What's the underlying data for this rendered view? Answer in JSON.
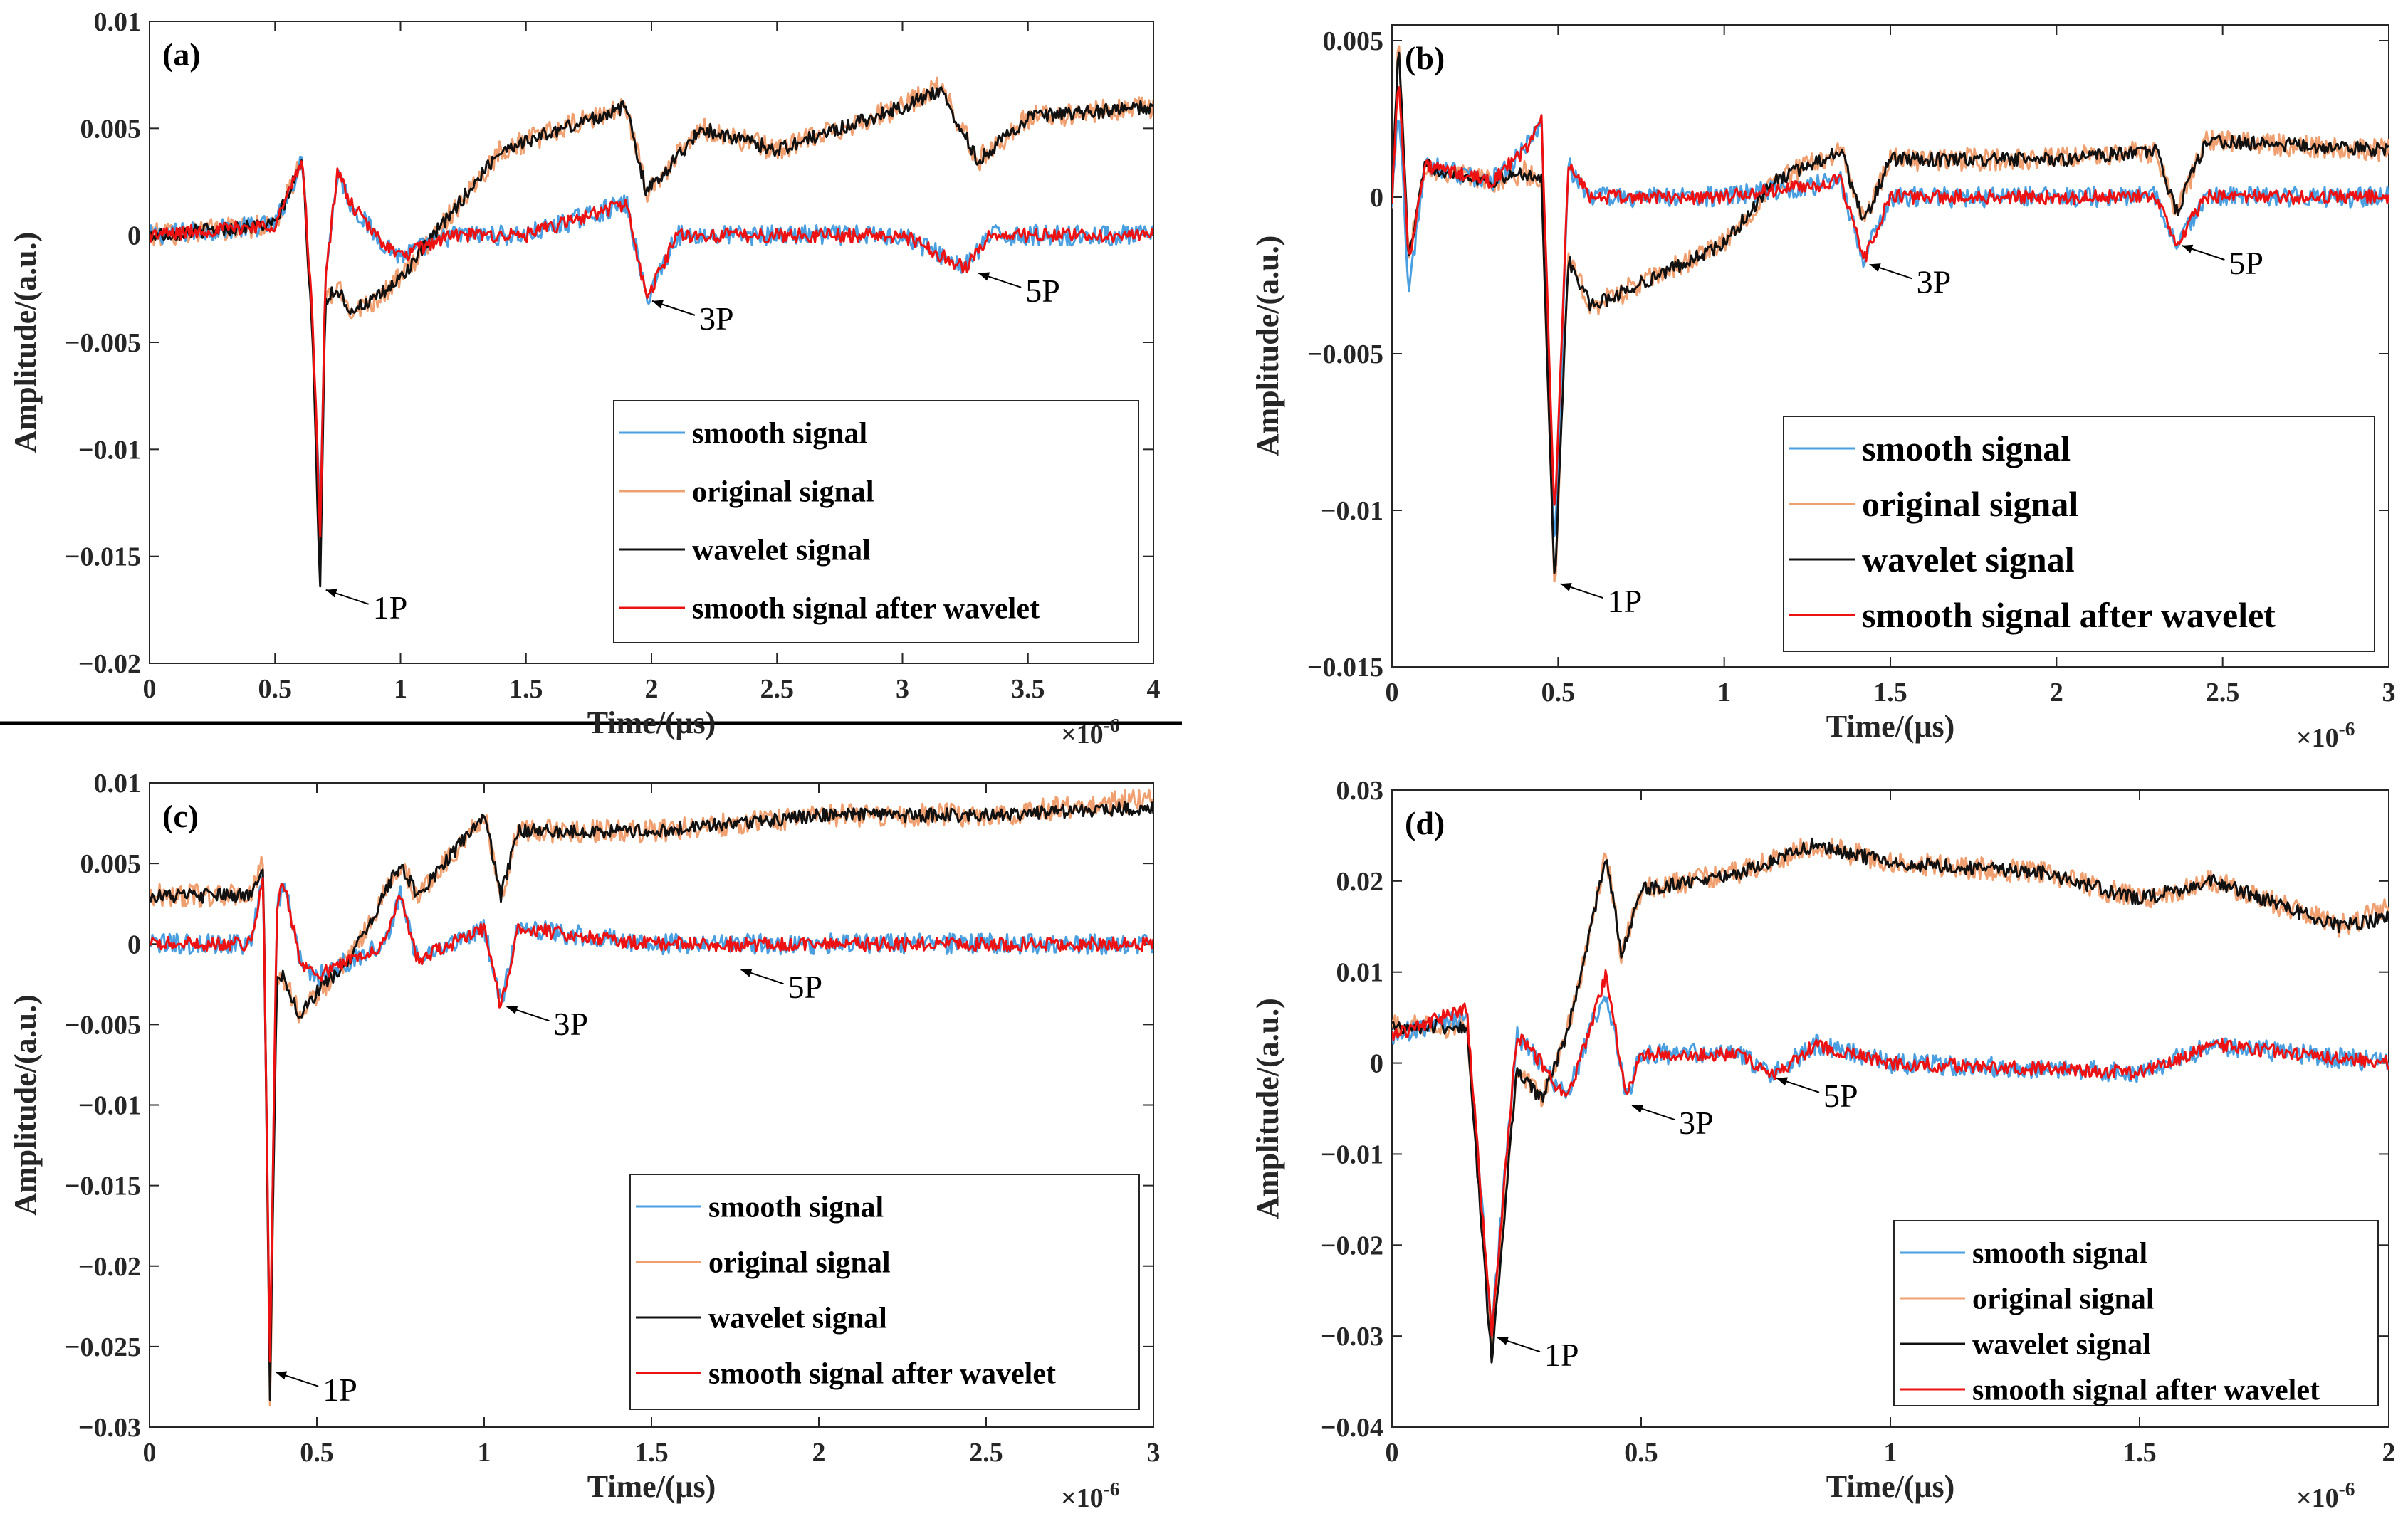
{
  "series_names": [
    "smooth signal",
    "original signal",
    "wavelet signal",
    "smooth signal after wavelet"
  ],
  "colors": {
    "smooth": "#4a9fe0",
    "original": "#f0a070",
    "wavelet": "#111111",
    "after": "#ee1111",
    "axis": "#262626",
    "separator": "#000000"
  },
  "chart_data": [
    {
      "panel": "(a)",
      "type": "line",
      "xlabel": "Time/(μs)",
      "ylabel": "Amplitude/(a.u.)",
      "x_exponent": "×10",
      "x_exponent_power": "-6",
      "xlim": [
        0,
        4e-06
      ],
      "ylim": [
        -0.02,
        0.01
      ],
      "xticks": [
        0,
        5e-07,
        1e-06,
        1.5e-06,
        2e-06,
        2.5e-06,
        3e-06,
        3.5e-06,
        4e-06
      ],
      "xtick_labels": [
        "0",
        "0.5",
        "1",
        "1.5",
        "2",
        "2.5",
        "3",
        "3.5",
        "4"
      ],
      "yticks": [
        0.01,
        0.005,
        0,
        -0.005,
        -0.01,
        -0.015,
        -0.02
      ],
      "ytick_labels": [
        "0.01",
        "0.005",
        "0",
        "−0.005",
        "−0.01",
        "−0.015",
        "−0.02"
      ],
      "legend_labels": [
        "smooth signal",
        "original signal",
        "wavelet  signal",
        "smooth signal after wavelet"
      ],
      "legend_position": "lower-right",
      "annotations": [
        {
          "text": "1P",
          "x": 6.8e-07,
          "y": -0.0165
        },
        {
          "text": "3P",
          "x": 1.98e-06,
          "y": -0.003
        },
        {
          "text": "5P",
          "x": 3.28e-06,
          "y": -0.0017
        }
      ],
      "series": [
        {
          "name": "smooth signal",
          "x": [
            0,
            5e-07,
            6.1e-07,
            6.5e-07,
            6.8e-07,
            7e-07,
            7.5e-07,
            8e-07,
            9e-07,
            1e-06,
            1.2e-06,
            1.5e-06,
            1.9e-06,
            1.98e-06,
            2.1e-06,
            2.5e-06,
            3e-06,
            3.25e-06,
            3.35e-06,
            3.6e-06,
            4e-06
          ],
          "y": [
            0,
            0.0005,
            0.0035,
            -0.004,
            -0.0135,
            -0.002,
            0.003,
            0.0015,
            0,
            -0.001,
            0,
            0,
            0.0015,
            -0.003,
            0,
            0,
            0,
            -0.0015,
            0,
            0,
            0
          ]
        },
        {
          "name": "original signal",
          "x": [
            0,
            5e-07,
            6.1e-07,
            6.5e-07,
            6.8e-07,
            7e-07,
            7.5e-07,
            8e-07,
            9e-07,
            1e-06,
            1.4e-06,
            1.9e-06,
            1.98e-06,
            2.2e-06,
            2.5e-06,
            3e-06,
            3.15e-06,
            3.3e-06,
            3.5e-06,
            4e-06
          ],
          "y": [
            0,
            0.0005,
            0.0035,
            -0.005,
            -0.016,
            -0.003,
            -0.0025,
            -0.0035,
            -0.003,
            -0.002,
            0.004,
            0.006,
            0.002,
            0.005,
            0.004,
            0.006,
            0.007,
            0.0035,
            0.0055,
            0.006
          ]
        },
        {
          "name": "wavelet signal",
          "x": [
            0,
            5e-07,
            6.1e-07,
            6.5e-07,
            6.8e-07,
            7e-07,
            7.5e-07,
            8e-07,
            9e-07,
            1e-06,
            1.4e-06,
            1.9e-06,
            1.98e-06,
            2.2e-06,
            2.5e-06,
            3e-06,
            3.15e-06,
            3.3e-06,
            3.5e-06,
            4e-06
          ],
          "y": [
            0,
            0.0005,
            0.0035,
            -0.005,
            -0.0165,
            -0.003,
            -0.0025,
            -0.0035,
            -0.003,
            -0.002,
            0.004,
            0.006,
            0.002,
            0.005,
            0.004,
            0.006,
            0.0068,
            0.0035,
            0.0055,
            0.006
          ]
        },
        {
          "name": "smooth signal after wavelet",
          "x": [
            0,
            5e-07,
            6.1e-07,
            6.5e-07,
            6.8e-07,
            7e-07,
            7.5e-07,
            8e-07,
            9e-07,
            1e-06,
            1.2e-06,
            1.5e-06,
            1.9e-06,
            1.98e-06,
            2.1e-06,
            2.5e-06,
            3e-06,
            3.25e-06,
            3.35e-06,
            3.6e-06,
            4e-06
          ],
          "y": [
            0,
            0.0005,
            0.0035,
            -0.004,
            -0.014,
            -0.002,
            0.003,
            0.0015,
            0,
            -0.001,
            0,
            0,
            0.0015,
            -0.003,
            0,
            0,
            0,
            -0.0015,
            0,
            0,
            0
          ]
        }
      ]
    },
    {
      "panel": "(b)",
      "type": "line",
      "xlabel": "Time/(μs)",
      "ylabel": "Amplitude/(a.u.)",
      "x_exponent": "×10",
      "x_exponent_power": "-6",
      "xlim": [
        0,
        3e-06
      ],
      "ylim": [
        -0.015,
        0.0055
      ],
      "xticks": [
        0,
        5e-07,
        1e-06,
        1.5e-06,
        2e-06,
        2.5e-06,
        3e-06
      ],
      "xtick_labels": [
        "0",
        "0.5",
        "1",
        "1.5",
        "2",
        "2.5",
        "3"
      ],
      "yticks": [
        0.005,
        0,
        -0.005,
        -0.01,
        -0.015
      ],
      "ytick_labels": [
        "0.005",
        "0",
        "−0.005",
        "−0.01",
        "−0.015"
      ],
      "legend_labels": [
        "smooth signal",
        "original signal",
        "wavelet signal",
        "smooth signal after wavelet"
      ],
      "legend_position": "lower-right",
      "annotations": [
        {
          "text": "1P",
          "x": 4.9e-07,
          "y": -0.0123
        },
        {
          "text": "3P",
          "x": 1.42e-06,
          "y": -0.0021
        },
        {
          "text": "5P",
          "x": 2.36e-06,
          "y": -0.0015
        }
      ],
      "series": [
        {
          "name": "smooth signal",
          "x": [
            0,
            2e-08,
            5e-08,
            1e-07,
            3e-07,
            4e-07,
            4.5e-07,
            4.9e-07,
            5.3e-07,
            6e-07,
            8e-07,
            1e-06,
            1.35e-06,
            1.42e-06,
            1.5e-06,
            2e-06,
            2.3e-06,
            2.36e-06,
            2.45e-06,
            3e-06
          ],
          "y": [
            0,
            0.003,
            -0.003,
            0.001,
            0.0005,
            0.0015,
            0.0025,
            -0.0115,
            0.001,
            0,
            0,
            0,
            0.0005,
            -0.002,
            0,
            0,
            0,
            -0.0015,
            0,
            0
          ]
        },
        {
          "name": "original signal",
          "x": [
            0,
            2e-08,
            5e-08,
            1e-07,
            3e-07,
            4e-07,
            4.5e-07,
            4.9e-07,
            5.3e-07,
            6e-07,
            8e-07,
            1e-06,
            1.15e-06,
            1.35e-06,
            1.42e-06,
            1.5e-06,
            2e-06,
            2.3e-06,
            2.36e-06,
            2.45e-06,
            3e-06
          ],
          "y": [
            0,
            0.005,
            -0.002,
            0.001,
            0.0005,
            0.0008,
            0.0005,
            -0.0125,
            -0.002,
            -0.0035,
            -0.0025,
            -0.0015,
            0.0005,
            0.0015,
            -0.0008,
            0.0012,
            0.0012,
            0.0015,
            -0.0005,
            0.0018,
            0.0015
          ]
        },
        {
          "name": "wavelet signal",
          "x": [
            0,
            2e-08,
            5e-08,
            1e-07,
            3e-07,
            4e-07,
            4.5e-07,
            4.9e-07,
            5.3e-07,
            6e-07,
            8e-07,
            1e-06,
            1.15e-06,
            1.35e-06,
            1.42e-06,
            1.5e-06,
            2e-06,
            2.3e-06,
            2.36e-06,
            2.45e-06,
            3e-06
          ],
          "y": [
            0,
            0.005,
            -0.002,
            0.001,
            0.0005,
            0.0008,
            0.0005,
            -0.0125,
            -0.002,
            -0.0035,
            -0.0025,
            -0.0015,
            0.0005,
            0.0015,
            -0.0008,
            0.0012,
            0.0012,
            0.0015,
            -0.0005,
            0.0018,
            0.0015
          ]
        },
        {
          "name": "smooth signal after wavelet",
          "x": [
            0,
            2e-08,
            5e-08,
            1e-07,
            3e-07,
            4e-07,
            4.5e-07,
            4.9e-07,
            5.3e-07,
            6e-07,
            8e-07,
            1e-06,
            1.35e-06,
            1.42e-06,
            1.5e-06,
            2e-06,
            2.3e-06,
            2.36e-06,
            2.45e-06,
            3e-06
          ],
          "y": [
            0,
            0.004,
            -0.002,
            0.001,
            0.0005,
            0.0015,
            0.0025,
            -0.0105,
            0.001,
            0,
            0,
            0,
            0.0005,
            -0.002,
            0,
            0,
            0,
            -0.0015,
            0,
            0
          ]
        }
      ]
    },
    {
      "panel": "(c)",
      "type": "line",
      "xlabel": "Time/(μs)",
      "ylabel": "Amplitude/(a.u.)",
      "x_exponent": "×10",
      "x_exponent_power": "-6",
      "xlim": [
        0,
        3e-06
      ],
      "ylim": [
        -0.03,
        0.01
      ],
      "xticks": [
        0,
        5e-07,
        1e-06,
        1.5e-06,
        2e-06,
        2.5e-06,
        3e-06
      ],
      "xtick_labels": [
        "0",
        "0.5",
        "1",
        "1.5",
        "2",
        "2.5",
        "3"
      ],
      "yticks": [
        0.01,
        0.005,
        0,
        -0.005,
        -0.01,
        -0.015,
        -0.02,
        -0.025,
        -0.03
      ],
      "ytick_labels": [
        "0.01",
        "0.005",
        "0",
        "−0.005",
        "−0.01",
        "−0.015",
        "−0.02",
        "−0.025",
        "−0.03"
      ],
      "legend_labels": [
        "smooth signal",
        "original signal",
        "wavelet signal",
        "smooth signal after wavelet"
      ],
      "legend_position": "lower-right",
      "annotations": [
        {
          "text": "1P",
          "x": 3.6e-07,
          "y": -0.0265
        },
        {
          "text": "3P",
          "x": 1.05e-06,
          "y": -0.0038
        },
        {
          "text": "5P",
          "x": 1.75e-06,
          "y": -0.0015
        }
      ],
      "series": [
        {
          "name": "smooth signal",
          "x": [
            0,
            3e-07,
            3.4e-07,
            3.6e-07,
            3.8e-07,
            4e-07,
            4.5e-07,
            5e-07,
            7e-07,
            7.5e-07,
            8e-07,
            1e-06,
            1.05e-06,
            1.1e-06,
            1.5e-06,
            2e-06,
            2.5e-06,
            3e-06
          ],
          "y": [
            0,
            0,
            0.004,
            -0.027,
            0.002,
            0.004,
            -0.001,
            -0.002,
            0,
            0.003,
            -0.001,
            0.001,
            -0.0038,
            0.001,
            0,
            0,
            0,
            0
          ]
        },
        {
          "name": "original signal",
          "x": [
            0,
            3e-07,
            3.4e-07,
            3.6e-07,
            3.8e-07,
            4e-07,
            4.5e-07,
            5e-07,
            6e-07,
            7.5e-07,
            8e-07,
            1e-06,
            1.05e-06,
            1.1e-06,
            1.5e-06,
            2e-06,
            2.5e-06,
            3e-06
          ],
          "y": [
            0.003,
            0.003,
            0.005,
            -0.029,
            -0.002,
            -0.002,
            -0.0045,
            -0.003,
            -0.001,
            0.005,
            0.003,
            0.008,
            0.003,
            0.007,
            0.007,
            0.008,
            0.008,
            0.009
          ]
        },
        {
          "name": "wavelet signal",
          "x": [
            0,
            3e-07,
            3.4e-07,
            3.6e-07,
            3.8e-07,
            4e-07,
            4.5e-07,
            5e-07,
            6e-07,
            7.5e-07,
            8e-07,
            1e-06,
            1.05e-06,
            1.1e-06,
            1.5e-06,
            2e-06,
            2.5e-06,
            3e-06
          ],
          "y": [
            0.003,
            0.003,
            0.005,
            -0.028,
            -0.002,
            -0.002,
            -0.0045,
            -0.003,
            -0.001,
            0.005,
            0.003,
            0.008,
            0.003,
            0.007,
            0.007,
            0.008,
            0.008,
            0.0085
          ]
        },
        {
          "name": "smooth signal after wavelet",
          "x": [
            0,
            3e-07,
            3.4e-07,
            3.6e-07,
            3.8e-07,
            4e-07,
            4.5e-07,
            5e-07,
            7e-07,
            7.5e-07,
            8e-07,
            1e-06,
            1.05e-06,
            1.1e-06,
            1.5e-06,
            2e-06,
            2.5e-06,
            3e-06
          ],
          "y": [
            0,
            0,
            0.004,
            -0.026,
            0.002,
            0.004,
            -0.001,
            -0.002,
            0,
            0.003,
            -0.001,
            0.001,
            -0.004,
            0.001,
            0,
            0,
            0,
            0
          ]
        }
      ]
    },
    {
      "panel": "(d)",
      "type": "line",
      "xlabel": "Time/(μs)",
      "ylabel": "Amplitude/(a.u.)",
      "x_exponent": "×10",
      "x_exponent_power": "-6",
      "xlim": [
        0,
        2e-06
      ],
      "ylim": [
        -0.04,
        0.03
      ],
      "xticks": [
        0,
        5e-07,
        1e-06,
        1.5e-06,
        2e-06
      ],
      "xtick_labels": [
        "0",
        "0.5",
        "1",
        "1.5",
        "2"
      ],
      "yticks": [
        0.03,
        0.02,
        0.01,
        0,
        -0.01,
        -0.02,
        -0.03,
        -0.04
      ],
      "ytick_labels": [
        "0.03",
        "0.02",
        "0.01",
        "0",
        "−0.01",
        "−0.02",
        "−0.03",
        "−0.04"
      ],
      "legend_labels": [
        "smooth signal",
        "original signal",
        "wavelet signal",
        "smooth signal after wavelet"
      ],
      "legend_position": "lower-right",
      "annotations": [
        {
          "text": "1P",
          "x": 2e-07,
          "y": -0.03
        },
        {
          "text": "3P",
          "x": 4.7e-07,
          "y": -0.0045
        },
        {
          "text": "5P",
          "x": 7.6e-07,
          "y": -0.0015
        }
      ],
      "series": [
        {
          "name": "smooth signal",
          "x": [
            0,
            1.5e-07,
            2e-07,
            2.5e-07,
            3e-07,
            3.5e-07,
            4e-07,
            4.3e-07,
            4.7e-07,
            5e-07,
            7e-07,
            7.6e-07,
            8.5e-07,
            1e-06,
            1.5e-06,
            1.65e-06,
            2e-06
          ],
          "y": [
            0.003,
            0.005,
            -0.029,
            0.003,
            0.0,
            -0.004,
            0.004,
            0.008,
            -0.004,
            0.001,
            0.001,
            -0.0015,
            0.002,
            0,
            -0.001,
            0.002,
            0
          ]
        },
        {
          "name": "original signal",
          "x": [
            0,
            1.5e-07,
            2e-07,
            2.5e-07,
            3e-07,
            3.5e-07,
            4e-07,
            4.3e-07,
            4.6e-07,
            5e-07,
            7e-07,
            8.5e-07,
            1e-06,
            1.3e-06,
            1.5e-06,
            1.65e-06,
            1.9e-06,
            2e-06
          ],
          "y": [
            0.004,
            0.004,
            -0.031,
            -0.001,
            -0.004,
            0.003,
            0.015,
            0.023,
            0.012,
            0.019,
            0.021,
            0.024,
            0.022,
            0.021,
            0.018,
            0.02,
            0.015,
            0.017
          ]
        },
        {
          "name": "wavelet signal",
          "x": [
            0,
            1.5e-07,
            2e-07,
            2.5e-07,
            3e-07,
            3.5e-07,
            4e-07,
            4.3e-07,
            4.6e-07,
            5e-07,
            7e-07,
            8.5e-07,
            1e-06,
            1.3e-06,
            1.5e-06,
            1.65e-06,
            1.9e-06,
            2e-06
          ],
          "y": [
            0.004,
            0.004,
            -0.033,
            -0.001,
            -0.004,
            0.003,
            0.015,
            0.023,
            0.012,
            0.019,
            0.021,
            0.024,
            0.022,
            0.021,
            0.018,
            0.02,
            0.015,
            0.016
          ]
        },
        {
          "name": "smooth signal after wavelet",
          "x": [
            0,
            1.5e-07,
            2e-07,
            2.5e-07,
            3e-07,
            3.5e-07,
            4e-07,
            4.3e-07,
            4.7e-07,
            5e-07,
            7e-07,
            7.6e-07,
            8.5e-07,
            1e-06,
            1.5e-06,
            1.65e-06,
            2e-06
          ],
          "y": [
            0.003,
            0.006,
            -0.03,
            0.003,
            0.0,
            -0.004,
            0.004,
            0.01,
            -0.004,
            0.001,
            0.001,
            -0.0015,
            0.002,
            0,
            -0.001,
            0.002,
            0
          ]
        }
      ]
    }
  ]
}
